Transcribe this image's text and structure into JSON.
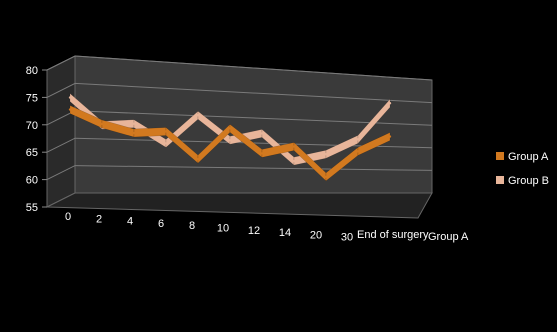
{
  "chart_data": {
    "type": "line",
    "three_d": true,
    "categories": [
      "0",
      "2",
      "4",
      "6",
      "8",
      "10",
      "12",
      "14",
      "20",
      "30",
      "End of surgery"
    ],
    "depth_axis_label": "Group A",
    "y_ticks": [
      "55",
      "60",
      "65",
      "70",
      "75",
      "80"
    ],
    "ylim": [
      55,
      80
    ],
    "grid": true,
    "legend_position": "right",
    "series": [
      {
        "name": "Group A",
        "color": "#d2791f",
        "values": [
          72,
          69.5,
          68,
          68.5,
          63.5,
          69.5,
          65,
          66.5,
          61,
          66,
          69
        ]
      },
      {
        "name": "Group B",
        "color": "#e8b59a",
        "values": [
          72,
          67,
          67.5,
          64,
          69.5,
          65,
          66.5,
          61.5,
          63,
          66,
          73
        ]
      }
    ]
  }
}
